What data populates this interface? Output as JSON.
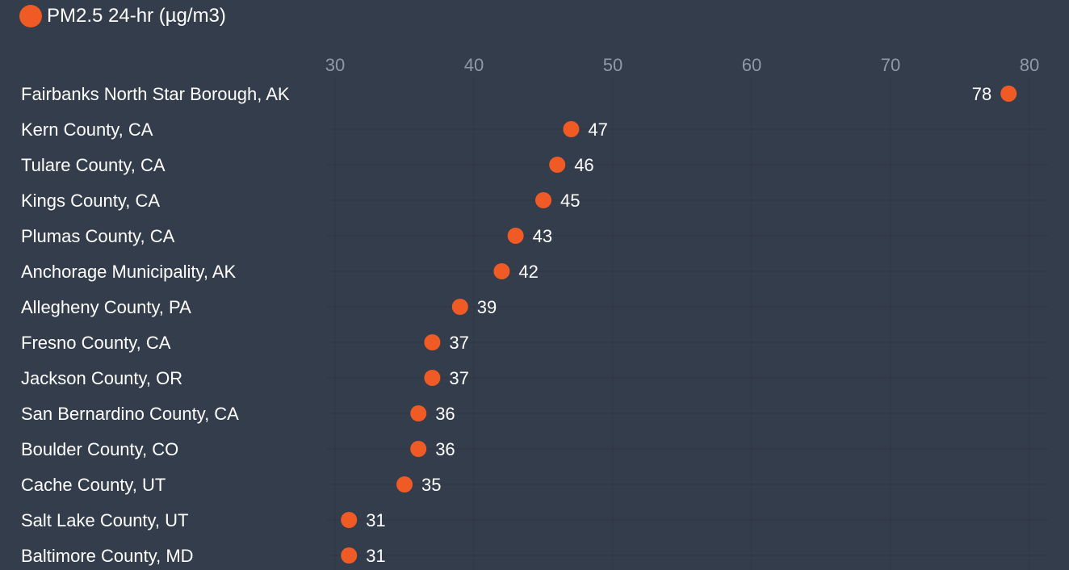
{
  "chart_data": {
    "type": "scatter",
    "legend": {
      "label": "PM2.5 24-hr (µg/m3)",
      "position": "top-left"
    },
    "colors": {
      "background": "#343d4b",
      "point": "#f05a24",
      "grid": "#2f3744",
      "tick_text": "#8f99a8",
      "text": "#ffffff"
    },
    "x_axis": {
      "ticks": [
        30,
        40,
        50,
        60,
        70,
        80
      ],
      "tick_labels": [
        "30",
        "40",
        "50",
        "60",
        "70",
        "80"
      ],
      "range": [
        30,
        80
      ],
      "position": "top"
    },
    "categories": [
      "Fairbanks North Star Borough, AK",
      "Kern County, CA",
      "Tulare County, CA",
      "Kings County, CA",
      "Plumas County, CA",
      "Anchorage Municipality, AK",
      "Allegheny County, PA",
      "Fresno County, CA",
      "Jackson County, OR",
      "San Bernardino County, CA",
      "Boulder County, CO",
      "Cache County, UT",
      "Salt Lake County, UT",
      "Baltimore County, MD"
    ],
    "values": [
      78.5,
      47,
      46,
      45,
      43,
      42,
      39,
      37,
      37,
      36,
      36,
      35,
      31,
      31
    ],
    "value_labels": [
      "78",
      "47",
      "46",
      "45",
      "43",
      "42",
      "39",
      "37",
      "37",
      "36",
      "36",
      "35",
      "31",
      "31"
    ],
    "grid": true
  }
}
